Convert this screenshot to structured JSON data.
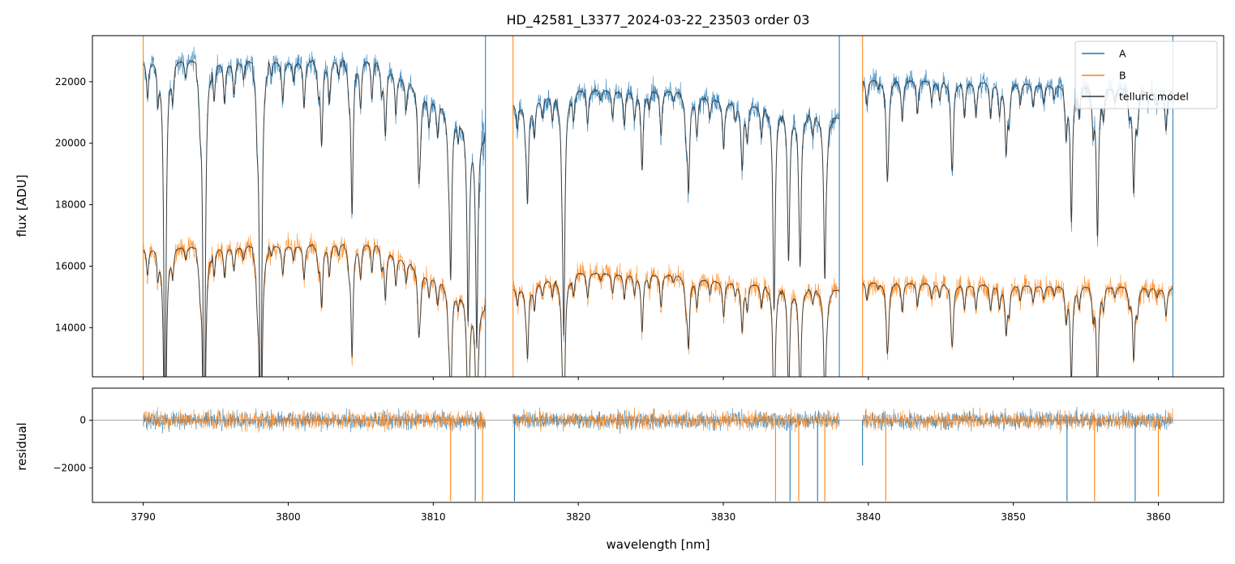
{
  "chart_data": {
    "type": "line",
    "title": "HD_42581_L3377_2024-03-22_23503  order 03",
    "xlabel": "wavelength [nm]",
    "xlim": [
      3786.5,
      3864.5
    ],
    "x_ticks": [
      3790,
      3800,
      3810,
      3820,
      3830,
      3840,
      3850,
      3860
    ],
    "segments": [
      [
        3790.0,
        3813.6
      ],
      [
        3815.5,
        3838.0
      ],
      [
        3839.6,
        3861.0
      ]
    ],
    "legend": {
      "position": "top-right",
      "entries": [
        "A",
        "B",
        "telluric model"
      ]
    },
    "colors": {
      "A": "#1f77b4",
      "B": "#ff7f0e",
      "model": "#333333",
      "zero_line": "#888888"
    },
    "top_panel": {
      "ylabel": "flux [ADU]",
      "ylim": [
        12400,
        23500
      ],
      "y_ticks": [
        14000,
        16000,
        18000,
        20000,
        22000
      ],
      "continuum": {
        "A": [
          [
            3790,
            22700
          ],
          [
            3800,
            22700
          ],
          [
            3806,
            22800
          ],
          [
            3813.5,
            20300
          ],
          [
            3815.5,
            21300
          ],
          [
            3820,
            21750
          ],
          [
            3826,
            21750
          ],
          [
            3830,
            21400
          ],
          [
            3838,
            20800
          ],
          [
            3839.6,
            22100
          ],
          [
            3850,
            22000
          ],
          [
            3861,
            21700
          ]
        ],
        "B": [
          [
            3790,
            16600
          ],
          [
            3800,
            16700
          ],
          [
            3806,
            16800
          ],
          [
            3813.5,
            14700
          ],
          [
            3815.5,
            15300
          ],
          [
            3820,
            15800
          ],
          [
            3826,
            15750
          ],
          [
            3830,
            15500
          ],
          [
            3838,
            15200
          ],
          [
            3839.6,
            15500
          ],
          [
            3850,
            15400
          ],
          [
            3861,
            15300
          ]
        ]
      },
      "absorption_lines": [
        [
          3791.5,
          0.55
        ],
        [
          3794.2,
          0.62
        ],
        [
          3798.1,
          0.6
        ],
        [
          3802.3,
          0.12
        ],
        [
          3804.4,
          0.22
        ],
        [
          3806.7,
          0.1
        ],
        [
          3809.0,
          0.12
        ],
        [
          3811.2,
          0.25
        ],
        [
          3812.4,
          0.3
        ],
        [
          3813.0,
          0.35
        ],
        [
          3816.5,
          0.15
        ],
        [
          3819.0,
          0.35
        ],
        [
          3824.4,
          0.12
        ],
        [
          3827.6,
          0.14
        ],
        [
          3831.3,
          0.1
        ],
        [
          3833.5,
          0.3
        ],
        [
          3834.5,
          0.22
        ],
        [
          3835.3,
          0.22
        ],
        [
          3837.0,
          0.25
        ],
        [
          3841.3,
          0.12
        ],
        [
          3845.8,
          0.1
        ],
        [
          3849.5,
          0.1
        ],
        [
          3854.0,
          0.2
        ],
        [
          3855.8,
          0.22
        ],
        [
          3858.3,
          0.15
        ]
      ],
      "spikes": [
        3790.0,
        3813.6,
        3815.5,
        3838.0,
        3839.6,
        3861.0
      ]
    },
    "bottom_panel": {
      "ylabel": "residual",
      "ylim": [
        -3450,
        1350
      ],
      "y_ticks": [
        -2000,
        0
      ],
      "zero_line": 0,
      "noise_amplitude": 600,
      "deep_dips": [
        [
          3811.2,
          -3400
        ],
        [
          3812.9,
          -3400
        ],
        [
          3813.4,
          -3400
        ],
        [
          3815.6,
          -3400
        ],
        [
          3833.6,
          -3400
        ],
        [
          3834.6,
          -3400
        ],
        [
          3835.2,
          -3400
        ],
        [
          3836.5,
          -3400
        ],
        [
          3837.0,
          -3400
        ],
        [
          3839.6,
          -1900
        ],
        [
          3841.2,
          -3400
        ],
        [
          3853.7,
          -3400
        ],
        [
          3855.6,
          -3400
        ],
        [
          3858.4,
          -3400
        ],
        [
          3860.0,
          -3200
        ]
      ]
    }
  }
}
